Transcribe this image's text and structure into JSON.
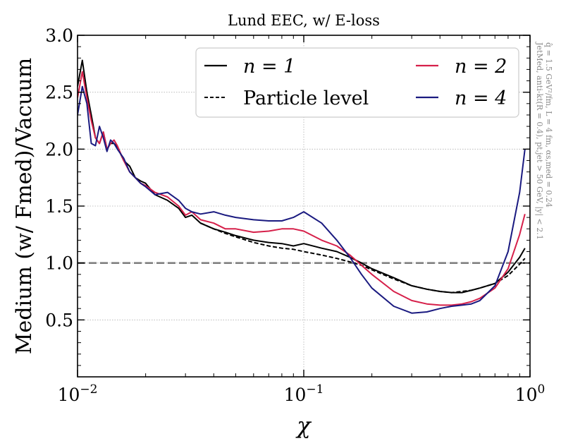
{
  "chart_data": {
    "type": "line",
    "title": "Lund EEC, w/ E-loss",
    "xlabel": "χ",
    "ylabel": "Medium (w/ Fmed)/Vacuum",
    "xscale": "log",
    "xlim": [
      0.01,
      1.0
    ],
    "ylim": [
      0.0,
      3.0
    ],
    "x_ticks": [
      {
        "value": 0.01,
        "base": "10",
        "exp": "−2"
      },
      {
        "value": 0.1,
        "base": "10",
        "exp": "−1"
      },
      {
        "value": 1.0,
        "base": "10",
        "exp": "0"
      }
    ],
    "y_ticks": [
      {
        "value": 0.5,
        "label": "0.5"
      },
      {
        "value": 1.0,
        "label": "1.0"
      },
      {
        "value": 1.5,
        "label": "1.5"
      },
      {
        "value": 2.0,
        "label": "2.0"
      },
      {
        "value": 2.5,
        "label": "2.5"
      },
      {
        "value": 3.0,
        "label": "3.0"
      }
    ],
    "grid": true,
    "reference_line": {
      "y": 1.0,
      "color": "#808080",
      "style": "dashed"
    },
    "legend": {
      "placement": "top-right",
      "entries": [
        {
          "series": "n1",
          "label": "n = 1"
        },
        {
          "series": "n2",
          "label": "n = 2"
        },
        {
          "series": "particle",
          "label": "Particle level"
        },
        {
          "series": "n4",
          "label": "n = 4"
        }
      ]
    },
    "side_annotation": [
      "JetMed, anti-kt(R = 0.4), pt,jet > 50 GeV, |y| < 2.1",
      "q̂ = 1.5 GeV²/fm, L = 4 fm, αs,med = 0.24"
    ],
    "series": [
      {
        "id": "n1",
        "name": "n = 1",
        "color": "#000000",
        "style": "solid",
        "x": [
          0.01,
          0.0105,
          0.011,
          0.0115,
          0.012,
          0.0125,
          0.013,
          0.0135,
          0.014,
          0.0145,
          0.015,
          0.016,
          0.017,
          0.018,
          0.019,
          0.02,
          0.022,
          0.025,
          0.028,
          0.03,
          0.032,
          0.035,
          0.04,
          0.045,
          0.05,
          0.06,
          0.07,
          0.08,
          0.09,
          0.1,
          0.12,
          0.14,
          0.16,
          0.18,
          0.2,
          0.25,
          0.3,
          0.35,
          0.4,
          0.45,
          0.5,
          0.55,
          0.6,
          0.7,
          0.8,
          0.9,
          0.95
        ],
        "y": [
          2.55,
          2.78,
          2.5,
          2.3,
          2.1,
          2.05,
          2.15,
          2.0,
          2.05,
          2.05,
          2.02,
          1.9,
          1.85,
          1.75,
          1.72,
          1.7,
          1.6,
          1.55,
          1.48,
          1.4,
          1.42,
          1.35,
          1.3,
          1.27,
          1.24,
          1.2,
          1.18,
          1.17,
          1.15,
          1.17,
          1.13,
          1.1,
          1.05,
          1.0,
          0.95,
          0.87,
          0.8,
          0.77,
          0.75,
          0.74,
          0.74,
          0.76,
          0.78,
          0.82,
          0.92,
          1.05,
          1.13
        ]
      },
      {
        "id": "particle",
        "name": "Particle level",
        "color": "#000000",
        "style": "dashed",
        "x": [
          0.035,
          0.04,
          0.045,
          0.05,
          0.06,
          0.07,
          0.08,
          0.09,
          0.1,
          0.12,
          0.14,
          0.16,
          0.18,
          0.2,
          0.25,
          0.3,
          0.35,
          0.4,
          0.45,
          0.5,
          0.55,
          0.6,
          0.7,
          0.8,
          0.9,
          0.95
        ],
        "y": [
          1.35,
          1.3,
          1.26,
          1.23,
          1.18,
          1.15,
          1.13,
          1.12,
          1.1,
          1.07,
          1.04,
          1.01,
          0.98,
          0.94,
          0.86,
          0.8,
          0.77,
          0.75,
          0.74,
          0.75,
          0.76,
          0.78,
          0.82,
          0.89,
          0.99,
          1.04
        ]
      },
      {
        "id": "n2",
        "name": "n = 2",
        "color": "#d6204a",
        "style": "solid",
        "x": [
          0.01,
          0.0105,
          0.011,
          0.0115,
          0.012,
          0.0125,
          0.013,
          0.0135,
          0.014,
          0.0145,
          0.015,
          0.016,
          0.017,
          0.018,
          0.019,
          0.02,
          0.022,
          0.025,
          0.028,
          0.03,
          0.032,
          0.035,
          0.04,
          0.045,
          0.05,
          0.06,
          0.07,
          0.08,
          0.09,
          0.1,
          0.12,
          0.14,
          0.16,
          0.18,
          0.2,
          0.25,
          0.3,
          0.35,
          0.4,
          0.45,
          0.5,
          0.55,
          0.6,
          0.7,
          0.8,
          0.9,
          0.95
        ],
        "y": [
          2.45,
          2.68,
          2.45,
          2.25,
          2.1,
          2.05,
          2.15,
          2.0,
          2.05,
          2.08,
          2.03,
          1.9,
          1.8,
          1.75,
          1.7,
          1.68,
          1.62,
          1.58,
          1.5,
          1.42,
          1.45,
          1.38,
          1.35,
          1.3,
          1.3,
          1.27,
          1.28,
          1.3,
          1.3,
          1.28,
          1.2,
          1.15,
          1.07,
          0.98,
          0.9,
          0.75,
          0.67,
          0.64,
          0.63,
          0.63,
          0.64,
          0.66,
          0.69,
          0.78,
          0.95,
          1.25,
          1.43
        ]
      },
      {
        "id": "n4",
        "name": "n = 4",
        "color": "#1a1a80",
        "style": "solid",
        "x": [
          0.01,
          0.0105,
          0.011,
          0.0115,
          0.012,
          0.0125,
          0.013,
          0.0135,
          0.014,
          0.0145,
          0.015,
          0.016,
          0.017,
          0.018,
          0.019,
          0.02,
          0.022,
          0.025,
          0.028,
          0.03,
          0.032,
          0.035,
          0.04,
          0.045,
          0.05,
          0.06,
          0.07,
          0.08,
          0.09,
          0.1,
          0.12,
          0.14,
          0.16,
          0.18,
          0.2,
          0.25,
          0.3,
          0.35,
          0.4,
          0.45,
          0.5,
          0.55,
          0.6,
          0.7,
          0.8,
          0.9,
          0.95
        ],
        "y": [
          2.3,
          2.55,
          2.4,
          2.05,
          2.03,
          2.2,
          2.1,
          1.98,
          2.08,
          2.05,
          2.0,
          1.92,
          1.8,
          1.75,
          1.7,
          1.67,
          1.6,
          1.62,
          1.55,
          1.48,
          1.45,
          1.43,
          1.45,
          1.42,
          1.4,
          1.38,
          1.37,
          1.37,
          1.4,
          1.45,
          1.35,
          1.2,
          1.05,
          0.9,
          0.78,
          0.62,
          0.56,
          0.57,
          0.6,
          0.62,
          0.63,
          0.64,
          0.67,
          0.8,
          1.1,
          1.62,
          2.0
        ]
      }
    ]
  }
}
